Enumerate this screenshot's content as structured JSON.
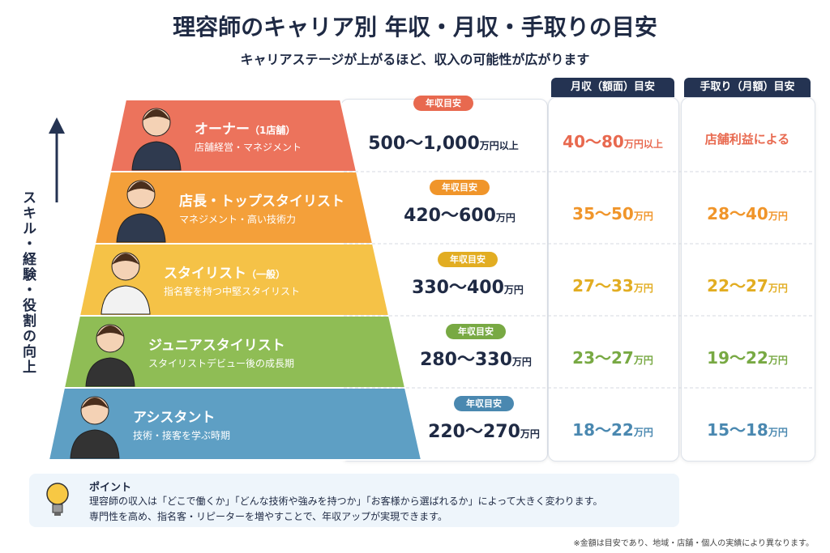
{
  "header": {
    "title": "理容師のキャリア別 年収・月収・手取りの目安",
    "subtitle": "キャリアステージが上がるほど、収入の可能性が広がります"
  },
  "axis_label": "スキル・経験・役割の向上",
  "columns": {
    "monthly": "月収（額面）目安",
    "takehome": "手取り（月額）目安"
  },
  "tiers": [
    {
      "title": "オーナー",
      "title_note": "（1店舗）",
      "description": "店舗経営・マネジメント",
      "color": "#ec735c",
      "value_color": "#e8694f",
      "annual_badge": "年収目安",
      "annual": "500～1,000",
      "annual_unit": "万円以上",
      "monthly": "40～80",
      "monthly_unit": "万円以上",
      "takehome": "店舗利益による"
    },
    {
      "title": "店長・トップスタイリスト",
      "description": "マネジメント・高い技術力",
      "color": "#f4a03a",
      "value_color": "#f0952a",
      "annual_badge": "年収目安",
      "annual": "420～600",
      "annual_unit": "万円",
      "monthly": "35～50",
      "monthly_unit": "万円",
      "takehome": "28～40",
      "takehome_unit": "万円"
    },
    {
      "title": "スタイリスト",
      "title_note": "（一般）",
      "description": "指名客を持つ中堅スタイリスト",
      "color": "#f5c247",
      "value_color": "#e2ad22",
      "annual_badge": "年収目安",
      "annual": "330～400",
      "annual_unit": "万円",
      "monthly": "27～33",
      "monthly_unit": "万円",
      "takehome": "22～27",
      "takehome_unit": "万円"
    },
    {
      "title": "ジュニアスタイリスト",
      "description": "スタイリストデビュー後の成長期",
      "color": "#8fbd55",
      "value_color": "#78a943",
      "annual_badge": "年収目安",
      "annual": "280～330",
      "annual_unit": "万円",
      "monthly": "23～27",
      "monthly_unit": "万円",
      "takehome": "19～22",
      "takehome_unit": "万円"
    },
    {
      "title": "アシスタント",
      "description": "技術・接客を学ぶ時期",
      "color": "#5e9fc4",
      "value_color": "#4a88b0",
      "annual_badge": "年収目安",
      "annual": "220～270",
      "annual_unit": "万円",
      "monthly": "18～22",
      "monthly_unit": "万円",
      "takehome": "15～18",
      "takehome_unit": "万円"
    }
  ],
  "point": {
    "title": "ポイント",
    "lines": [
      "理容師の収入は「どこで働くか」「どんな技術や強みを持つか」「お客様から選ばれるか」によって大きく変わります。",
      "専門性を高め、指名客・リピーターを増やすことで、年収アップが実現できます。"
    ]
  },
  "footnote": "※金額は目安であり、地域・店舗・個人の実績により異なります。"
}
